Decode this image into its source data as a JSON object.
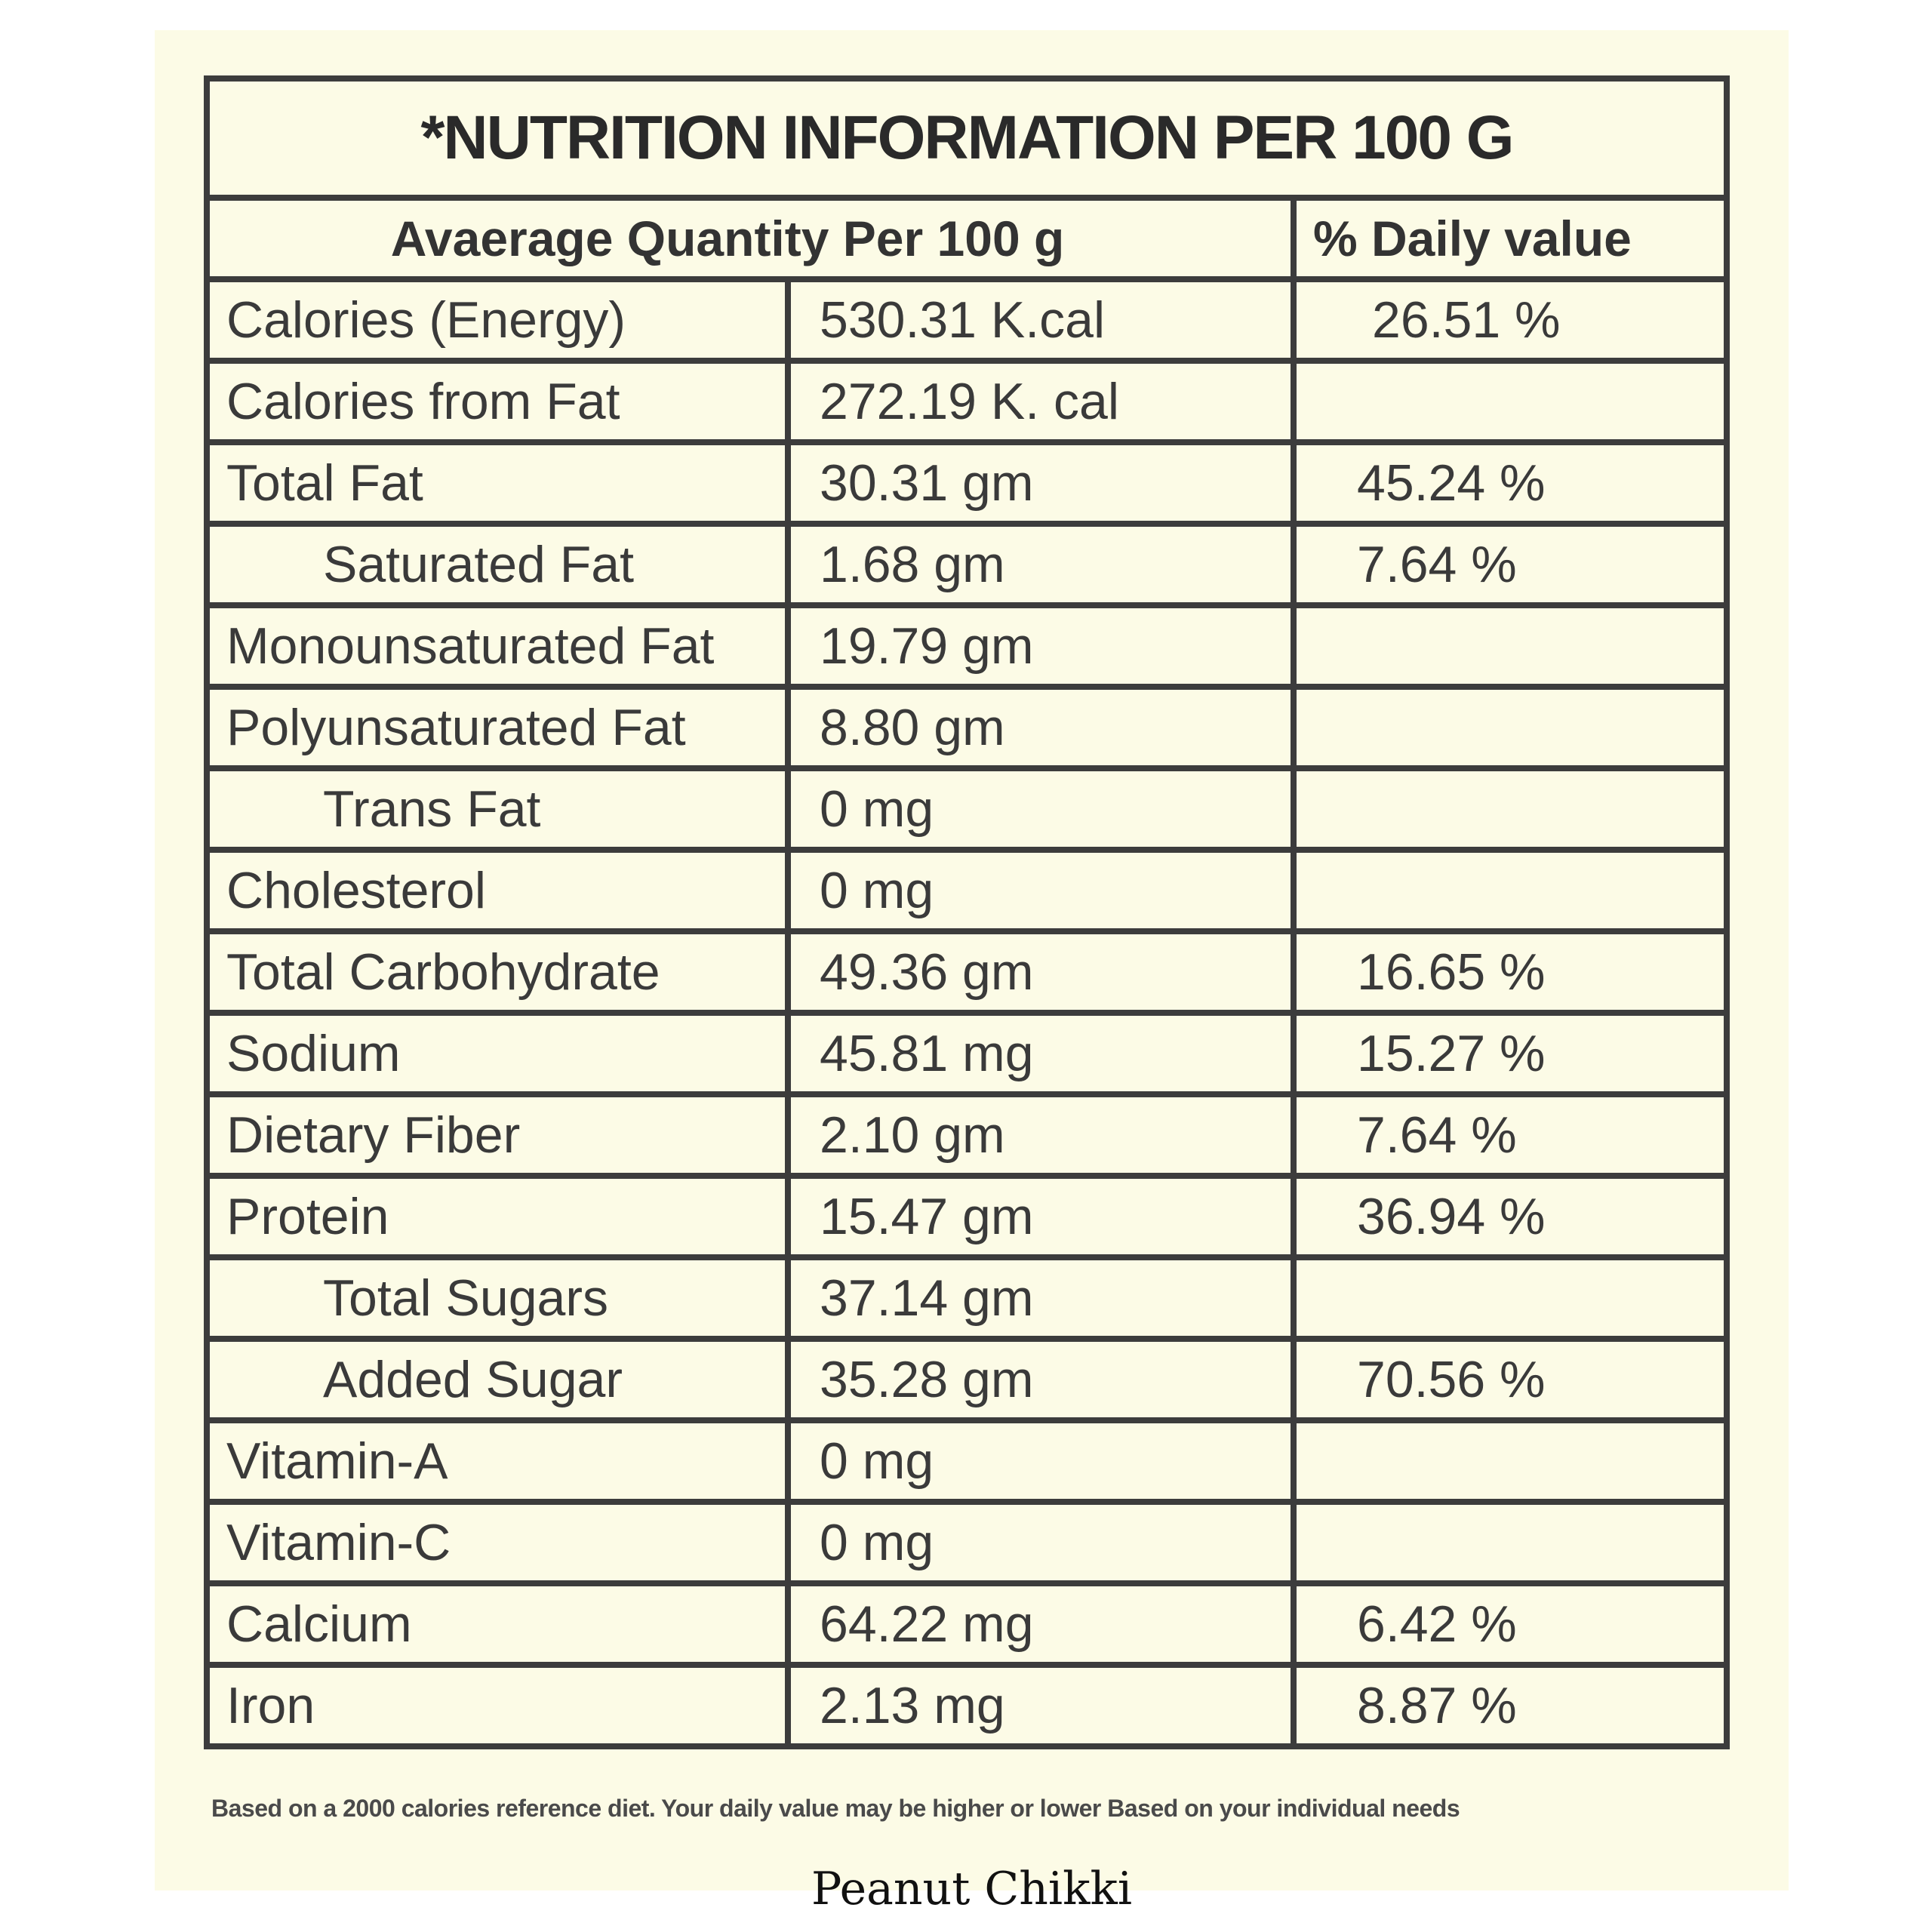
{
  "title": "*NUTRITION INFORMATION PER 100 G",
  "header": {
    "quantity": "Avaerage Quantity Per 100 g",
    "daily_value": "% Daily value"
  },
  "rows": [
    {
      "name": "Calories (Energy)",
      "amount": "530.31 K.cal",
      "dv": "26.51 %"
    },
    {
      "name": "Calories from Fat",
      "amount": "272.19 K. cal",
      "dv": ""
    },
    {
      "name": "Total Fat",
      "amount": "30.31 gm",
      "dv": "45.24 %"
    },
    {
      "name": "Saturated Fat",
      "amount": "1.68 gm",
      "dv": "7.64 %"
    },
    {
      "name": "Monounsaturated Fat",
      "amount": "19.79 gm",
      "dv": ""
    },
    {
      "name": "Polyunsaturated Fat",
      "amount": "8.80 gm",
      "dv": ""
    },
    {
      "name": "Trans Fat",
      "amount": "0 mg",
      "dv": ""
    },
    {
      "name": "Cholesterol",
      "amount": "0 mg",
      "dv": ""
    },
    {
      "name": "Total Carbohydrate",
      "amount": "49.36 gm",
      "dv": "16.65 %"
    },
    {
      "name": "Sodium",
      "amount": "45.81 mg",
      "dv": "15.27 %"
    },
    {
      "name": "Dietary Fiber",
      "amount": "2.10 gm",
      "dv": "7.64 %"
    },
    {
      "name": "Protein",
      "amount": "15.47 gm",
      "dv": "36.94 %"
    },
    {
      "name": "Total Sugars",
      "amount": "37.14 gm",
      "dv": ""
    },
    {
      "name": "Added Sugar",
      "amount": "35.28 gm",
      "dv": "70.56 %"
    },
    {
      "name": "Vitamin-A",
      "amount": "0 mg",
      "dv": ""
    },
    {
      "name": "Vitamin-C",
      "amount": "0 mg",
      "dv": ""
    },
    {
      "name": "Calcium",
      "amount": "64.22 mg",
      "dv": "6.42 %"
    },
    {
      "name": "Iron",
      "amount": "2.13 mg",
      "dv": "8.87 %"
    }
  ],
  "footnote": "Based on a 2000 calories reference diet. Your daily value may be higher or lower Based on your individual needs",
  "caption": "Peanut Chikki",
  "colors": {
    "background": "#fcfbe6",
    "border": "#3c3c3c"
  }
}
